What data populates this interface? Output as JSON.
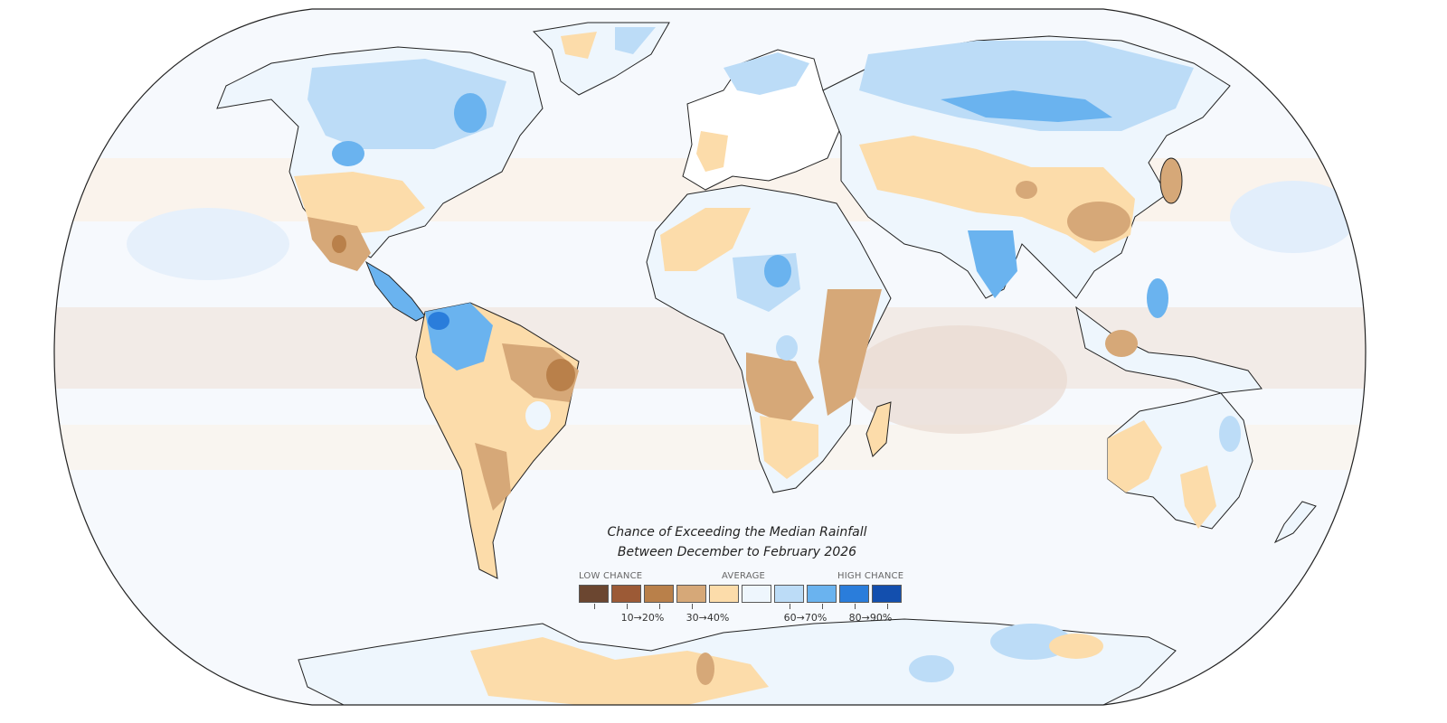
{
  "title_line1": "Chance of Exceeding the Median Rainfall",
  "title_line2": "Between December to February 2026",
  "legend": {
    "low_label": "LOW CHANCE",
    "average_label": "AVERAGE",
    "high_label": "HIGH CHANCE",
    "tick_labels": [
      "10→20%",
      "30→40%",
      "60→70%",
      "80→90%"
    ],
    "colors": [
      "#6b4630",
      "#9c5a36",
      "#b9804a",
      "#d6a878",
      "#fcdcaa",
      "#eef6fd",
      "#bcdcf7",
      "#6ab3ef",
      "#2a7ddb",
      "#134fae"
    ]
  },
  "map": {
    "ocean_color": "#f6f9fd",
    "land_outline_color": "#222222"
  }
}
